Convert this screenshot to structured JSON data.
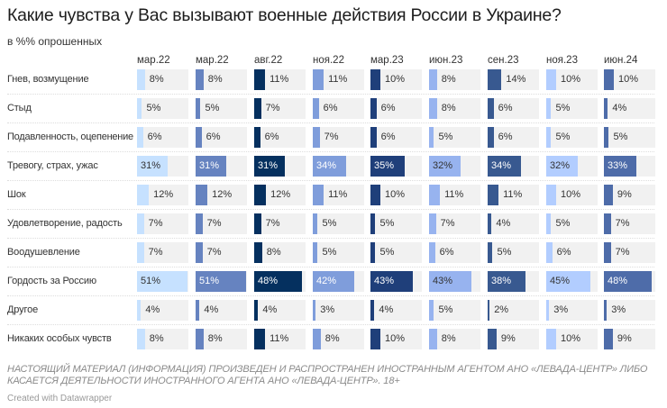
{
  "title": "Какие чувства у Вас вызывают военные действия России в Украине?",
  "subtitle": "в %% опрошенных",
  "footer": "НАСТОЯЩИЙ МАТЕРИАЛ (ИНФОРМАЦИЯ) ПРОИЗВЕДЕН И РАСПРОСТРАНЕН ИНОСТРАННЫМ АГЕНТОМ АНО «ЛЕВАДА-ЦЕНТР» ЛИБО КАСАЕТСЯ ДЕЯТЕЛЬНОСТИ ИНОСТРАННОГО АГЕНТА АНО «ЛЕВАДА-ЦЕНТР». 18+",
  "credit": "Created with Datawrapper",
  "chart_data": {
    "type": "table",
    "value_suffix": "%",
    "columns": [
      "мар.22",
      "мар.22",
      "авг.22",
      "ноя.22",
      "мар.23",
      "июн.23",
      "сен.23",
      "ноя.23",
      "июн.24"
    ],
    "column_colors": [
      "#c6e1ff",
      "#6683c0",
      "#05305f",
      "#7f9ddb",
      "#1f3f7a",
      "#97b3ef",
      "#385990",
      "#b2cdff",
      "#4e6ca9"
    ],
    "rows": [
      {
        "label": "Гнев, возмущение",
        "values": [
          8,
          8,
          11,
          11,
          10,
          8,
          14,
          10,
          10
        ]
      },
      {
        "label": "Стыд",
        "values": [
          5,
          5,
          7,
          6,
          6,
          8,
          6,
          5,
          4
        ]
      },
      {
        "label": "Подавленность, оцепенение",
        "values": [
          6,
          6,
          6,
          7,
          6,
          5,
          6,
          5,
          5
        ]
      },
      {
        "label": "Тревогу, страх, ужас",
        "values": [
          31,
          31,
          31,
          34,
          35,
          32,
          34,
          32,
          33
        ]
      },
      {
        "label": "Шок",
        "values": [
          12,
          12,
          12,
          11,
          10,
          11,
          11,
          10,
          9
        ]
      },
      {
        "label": "Удовлетворение, радость",
        "values": [
          7,
          7,
          7,
          5,
          5,
          7,
          4,
          5,
          7
        ]
      },
      {
        "label": "Воодушевление",
        "values": [
          7,
          7,
          8,
          5,
          5,
          6,
          5,
          6,
          7
        ]
      },
      {
        "label": "Гордость за Россию",
        "values": [
          51,
          51,
          48,
          42,
          43,
          43,
          38,
          45,
          48
        ]
      },
      {
        "label": "Другое",
        "values": [
          4,
          4,
          4,
          3,
          4,
          5,
          2,
          3,
          3
        ]
      },
      {
        "label": "Никаких особых чувств",
        "values": [
          8,
          8,
          11,
          8,
          10,
          8,
          9,
          10,
          9
        ]
      }
    ]
  }
}
